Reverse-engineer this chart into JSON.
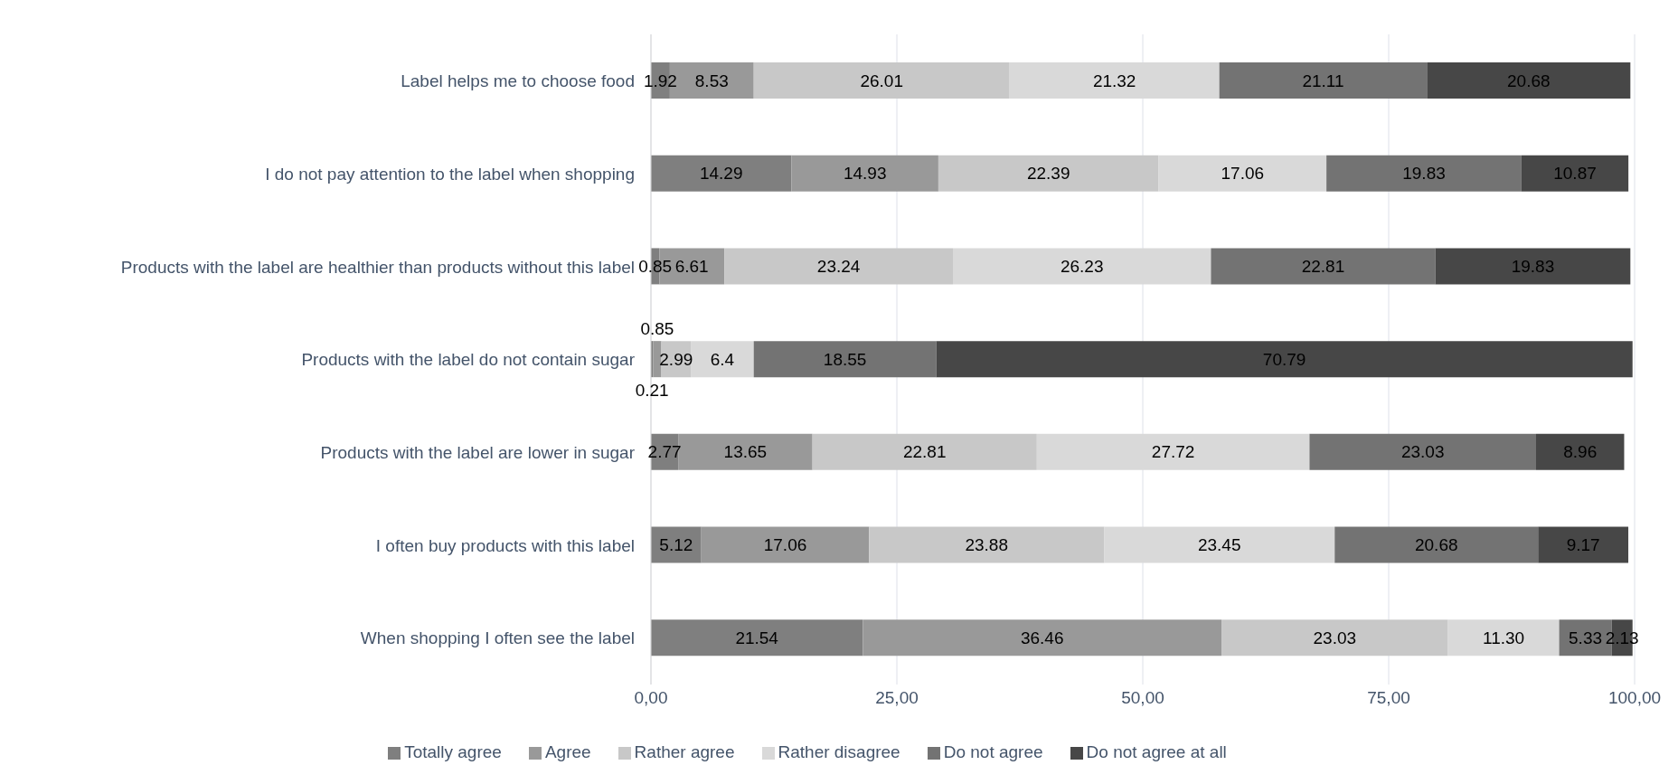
{
  "chart_data": {
    "type": "bar",
    "orientation": "horizontal",
    "stacked": true,
    "categories": [
      "Label helps me to choose food",
      "I do not pay attention to the label when shopping",
      "Products with the label are healthier than products without this label",
      "Products with the label do not contain sugar",
      "Products with the label are lower in sugar",
      "I often buy products with this label",
      "When shopping I often see the label"
    ],
    "series": [
      {
        "name": "Totally agree",
        "color": "#7f7f7f",
        "values": [
          1.92,
          14.29,
          0.85,
          0.21,
          2.77,
          5.12,
          21.54
        ],
        "value_labels": [
          "1.92",
          "14.29",
          "0.85",
          "0.21",
          "2.77",
          "5.12",
          "21.54"
        ]
      },
      {
        "name": "Agree",
        "color": "#999999",
        "values": [
          8.53,
          14.93,
          6.61,
          0.85,
          13.65,
          17.06,
          36.46
        ],
        "value_labels": [
          "8.53",
          "14.93",
          "6.61",
          "0.85",
          "13.65",
          "17.06",
          "36.46"
        ]
      },
      {
        "name": "Rather agree",
        "color": "#c8c8c8",
        "values": [
          26.01,
          22.39,
          23.24,
          2.99,
          22.81,
          23.88,
          23.03
        ],
        "value_labels": [
          "26.01",
          "22.39",
          "23.24",
          "2.99",
          "22.81",
          "23.88",
          "23.03"
        ]
      },
      {
        "name": "Rather disagree",
        "color": "#d9d9d9",
        "values": [
          21.32,
          17.06,
          26.23,
          6.4,
          27.72,
          23.45,
          11.3
        ],
        "value_labels": [
          "21.32",
          "17.06",
          "26.23",
          "6.4",
          "27.72",
          "23.45",
          "11.30"
        ]
      },
      {
        "name": "Do not agree",
        "color": "#737373",
        "values": [
          21.11,
          19.83,
          22.81,
          18.55,
          23.03,
          20.68,
          5.33
        ],
        "value_labels": [
          "21.11",
          "19.83",
          "22.81",
          "18.55",
          "23.03",
          "20.68",
          "5.33"
        ]
      },
      {
        "name": "Do not agree at all",
        "color": "#474747",
        "values": [
          20.68,
          10.87,
          19.83,
          70.79,
          8.96,
          9.17,
          2.13
        ],
        "value_labels": [
          "20.68",
          "10.87",
          "19.83",
          "70.79",
          "8.96",
          "9.17",
          "2.13"
        ]
      }
    ],
    "xlim": [
      0,
      100
    ],
    "xticks": [
      {
        "value": 0,
        "label": "0,00"
      },
      {
        "value": 25,
        "label": "25,00"
      },
      {
        "value": 50,
        "label": "50,00"
      },
      {
        "value": 75,
        "label": "75,00"
      },
      {
        "value": 100,
        "label": "100,00"
      }
    ],
    "grid": "x",
    "legend": "bottom"
  }
}
